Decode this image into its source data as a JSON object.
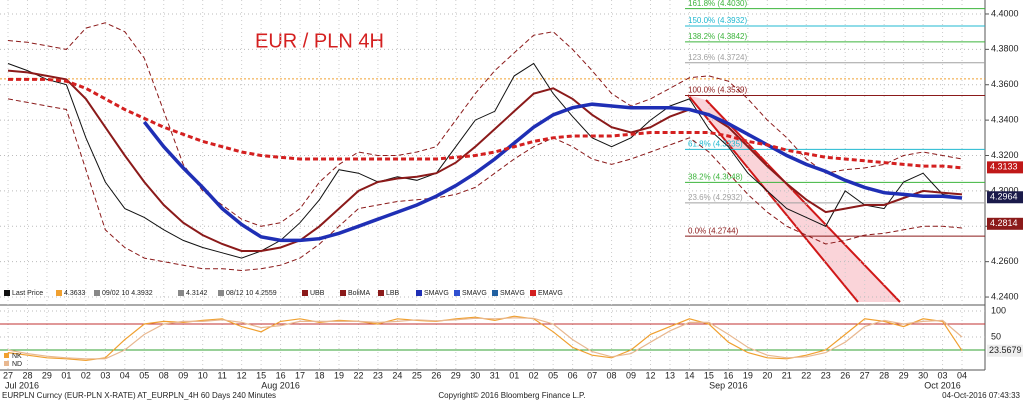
{
  "chart_data": [
    {
      "type": "line",
      "title": "EUR / PLN 4H",
      "categories": [
        "27",
        "28",
        "29",
        "01",
        "02",
        "03",
        "04",
        "05",
        "08",
        "09",
        "10",
        "11",
        "12",
        "15",
        "16",
        "17",
        "18",
        "19",
        "22",
        "23",
        "24",
        "25",
        "26",
        "29",
        "30",
        "31",
        "01",
        "02",
        "05",
        "06",
        "07",
        "08",
        "09",
        "12",
        "13",
        "14",
        "15",
        "16",
        "19",
        "20",
        "21",
        "22",
        "23",
        "26",
        "27",
        "28",
        "29",
        "30",
        "03",
        "04"
      ],
      "months": [
        "Jul 2016",
        null,
        null,
        null,
        null,
        null,
        null,
        null,
        null,
        null,
        null,
        null,
        null,
        null,
        "Aug 2016",
        null,
        null,
        null,
        null,
        null,
        null,
        null,
        null,
        null,
        null,
        null,
        null,
        null,
        null,
        null,
        null,
        null,
        null,
        null,
        null,
        null,
        null,
        "Sep 2016",
        null,
        null,
        null,
        null,
        null,
        null,
        null,
        null,
        null,
        null,
        "Oct 2016",
        null
      ],
      "ylim": [
        4.2355,
        4.4079
      ],
      "yticks": [
        {
          "value": 4.24,
          "label": "4.2400"
        },
        {
          "value": 4.26,
          "label": "4.2600"
        },
        {
          "value": 4.28,
          "label": "4.2800"
        },
        {
          "value": 4.3,
          "label": "4.3000"
        },
        {
          "value": 4.32,
          "label": "4.3200"
        },
        {
          "value": 4.34,
          "label": "4.3400"
        },
        {
          "value": 4.36,
          "label": "4.3600"
        },
        {
          "value": 4.38,
          "label": "4.3800"
        },
        {
          "value": 4.4,
          "label": "4.4000"
        }
      ],
      "grid": true,
      "series": [
        {
          "name": "Last Price",
          "color": "#111111",
          "width": 1,
          "dash": false,
          "values": [
            4.372,
            4.368,
            4.363,
            4.36,
            4.33,
            4.305,
            4.29,
            4.285,
            4.278,
            4.272,
            4.268,
            4.265,
            4.262,
            4.266,
            4.272,
            4.282,
            4.295,
            4.312,
            4.31,
            4.305,
            4.308,
            4.306,
            4.31,
            4.325,
            4.34,
            4.345,
            4.365,
            4.372,
            4.355,
            4.342,
            4.33,
            4.325,
            4.33,
            4.34,
            4.348,
            4.352,
            4.335,
            4.325,
            4.31,
            4.3,
            4.29,
            4.285,
            4.28,
            4.3,
            4.292,
            4.29,
            4.305,
            4.31,
            4.298,
            4.296
          ]
        },
        {
          "name": "UBB",
          "color": "#8b1a1a",
          "width": 1,
          "dash": true,
          "values": [
            4.385,
            4.384,
            4.382,
            4.38,
            4.392,
            4.395,
            4.39,
            4.375,
            4.345,
            4.315,
            4.3,
            4.292,
            4.284,
            4.28,
            4.282,
            4.29,
            4.305,
            4.315,
            4.322,
            4.32,
            4.32,
            4.322,
            4.325,
            4.34,
            4.355,
            4.368,
            4.378,
            4.388,
            4.39,
            4.38,
            4.368,
            4.355,
            4.348,
            4.352,
            4.358,
            4.364,
            4.365,
            4.362,
            4.352,
            4.34,
            4.33,
            4.318,
            4.31,
            4.312,
            4.313,
            4.315,
            4.32,
            4.322,
            4.32,
            4.318
          ]
        },
        {
          "name": "BoliMA",
          "color": "#8b1a1a",
          "width": 2,
          "dash": false,
          "values": [
            4.368,
            4.367,
            4.365,
            4.363,
            4.352,
            4.336,
            4.32,
            4.305,
            4.292,
            4.282,
            4.275,
            4.27,
            4.266,
            4.266,
            4.268,
            4.272,
            4.28,
            4.29,
            4.3,
            4.305,
            4.307,
            4.308,
            4.31,
            4.316,
            4.325,
            4.335,
            4.345,
            4.355,
            4.358,
            4.352,
            4.343,
            4.336,
            4.333,
            4.336,
            4.342,
            4.346,
            4.343,
            4.336,
            4.325,
            4.314,
            4.304,
            4.295,
            4.288,
            4.29,
            4.292,
            4.292,
            4.296,
            4.3,
            4.299,
            4.298
          ]
        },
        {
          "name": "LBB",
          "color": "#8b1a1a",
          "width": 1,
          "dash": true,
          "values": [
            4.352,
            4.35,
            4.348,
            4.346,
            4.312,
            4.278,
            4.268,
            4.262,
            4.26,
            4.258,
            4.256,
            4.256,
            4.255,
            4.256,
            4.258,
            4.262,
            4.27,
            4.28,
            4.29,
            4.292,
            4.294,
            4.295,
            4.296,
            4.298,
            4.302,
            4.31,
            4.318,
            4.325,
            4.33,
            4.325,
            4.318,
            4.315,
            4.318,
            4.322,
            4.326,
            4.33,
            4.322,
            4.31,
            4.298,
            4.288,
            4.28,
            4.275,
            4.27,
            4.272,
            4.275,
            4.276,
            4.278,
            4.28,
            4.28,
            4.279
          ]
        },
        {
          "name": "SMAVG",
          "color": "#1f2fb5",
          "width": 3.5,
          "dash": false,
          "values": [
            null,
            null,
            null,
            null,
            null,
            null,
            null,
            4.339,
            4.325,
            4.313,
            4.302,
            4.29,
            4.281,
            4.274,
            4.272,
            4.272,
            4.273,
            4.276,
            4.28,
            4.284,
            4.288,
            4.292,
            4.297,
            4.303,
            4.31,
            4.318,
            4.327,
            4.336,
            4.343,
            4.347,
            4.349,
            4.348,
            4.347,
            4.347,
            4.347,
            4.346,
            4.343,
            4.338,
            4.332,
            4.326,
            4.32,
            4.315,
            4.311,
            4.306,
            4.302,
            4.299,
            4.298,
            4.297,
            4.297,
            4.296
          ]
        },
        {
          "name": "EMAVG",
          "color": "#d42020",
          "width": 3,
          "dash": true,
          "values": [
            4.363,
            4.363,
            4.363,
            4.362,
            4.358,
            4.352,
            4.346,
            4.341,
            4.336,
            4.332,
            4.328,
            4.325,
            4.322,
            4.32,
            4.319,
            4.318,
            4.318,
            4.318,
            4.318,
            4.318,
            4.318,
            4.318,
            4.318,
            4.319,
            4.32,
            4.322,
            4.325,
            4.328,
            4.33,
            4.331,
            4.331,
            4.331,
            4.332,
            4.333,
            4.333,
            4.333,
            4.333,
            4.331,
            4.328,
            4.326,
            4.323,
            4.321,
            4.319,
            4.318,
            4.317,
            4.316,
            4.315,
            4.314,
            4.314,
            4.313
          ]
        }
      ],
      "ref_line": {
        "value": 4.3633,
        "color": "#f0a030"
      },
      "legend_extra": [
        "09/02 10 4.3932",
        "4.3142",
        "08/12 10 4.2559",
        "SMAVG",
        "SMAVG"
      ],
      "fib": [
        {
          "value": 4.403,
          "label": "161.8% (4.4030)",
          "color": "#3cb43c"
        },
        {
          "value": 4.3932,
          "label": "150.0% (4.3932)",
          "color": "#20b8d0"
        },
        {
          "value": 4.3842,
          "label": "138.2% (4.3842)",
          "color": "#3cb43c"
        },
        {
          "value": 4.3724,
          "label": "123.6% (4.3724)",
          "color": "#a0a0a0"
        },
        {
          "value": 4.3539,
          "label": "100.0% (4.3539)",
          "color": "#8b1a1a"
        },
        {
          "value": 4.3235,
          "label": "61.8% (4.3235)",
          "color": "#20b8d0"
        },
        {
          "value": 4.3048,
          "label": "38.2% (4.3048)",
          "color": "#3cb43c"
        },
        {
          "value": 4.2932,
          "label": "23.6% (4.2932)",
          "color": "#a0a0a0"
        },
        {
          "value": 4.2744,
          "label": "0.0% (4.2744)",
          "color": "#8b1a1a"
        }
      ],
      "tags": [
        {
          "value": 4.3133,
          "color": "#c01818"
        },
        {
          "value": 4.2964,
          "color": "#1a1a4a"
        },
        {
          "value": 4.2814,
          "color": "#8b1a1a"
        }
      ]
    },
    {
      "type": "line",
      "ylim": [
        0,
        100
      ],
      "yticks": [
        50,
        100
      ],
      "hlines": [
        {
          "value": 75,
          "color": "#c03030"
        },
        {
          "value": 25,
          "color": "#30a030"
        }
      ],
      "last_value": 23.5679,
      "series": [
        {
          "name": "NK",
          "color": "#f0a030",
          "values": [
            20,
            15,
            10,
            8,
            5,
            10,
            45,
            75,
            80,
            78,
            82,
            85,
            70,
            60,
            80,
            85,
            78,
            82,
            80,
            75,
            85,
            82,
            80,
            85,
            88,
            82,
            90,
            85,
            60,
            30,
            15,
            10,
            25,
            55,
            70,
            85,
            75,
            40,
            20,
            10,
            8,
            15,
            25,
            55,
            85,
            80,
            70,
            85,
            80,
            23.5679
          ]
        },
        {
          "name": "ND",
          "color": "#e8b890",
          "values": [
            25,
            18,
            13,
            10,
            8,
            8,
            25,
            55,
            75,
            80,
            80,
            83,
            78,
            68,
            72,
            80,
            80,
            80,
            80,
            78,
            80,
            83,
            81,
            83,
            86,
            85,
            87,
            86,
            75,
            45,
            22,
            12,
            18,
            40,
            62,
            78,
            78,
            55,
            30,
            15,
            10,
            12,
            20,
            40,
            70,
            82,
            75,
            80,
            82,
            50
          ]
        }
      ]
    }
  ],
  "footer": {
    "left": "EURPLN Curncy (EUR-PLN X-RATE) AT_EURPLN_4H 60 Days 240 Minutes",
    "center": "Copyright© 2016 Bloomberg Finance L.P.",
    "right": "04-Oct-2016 07:43:33"
  }
}
